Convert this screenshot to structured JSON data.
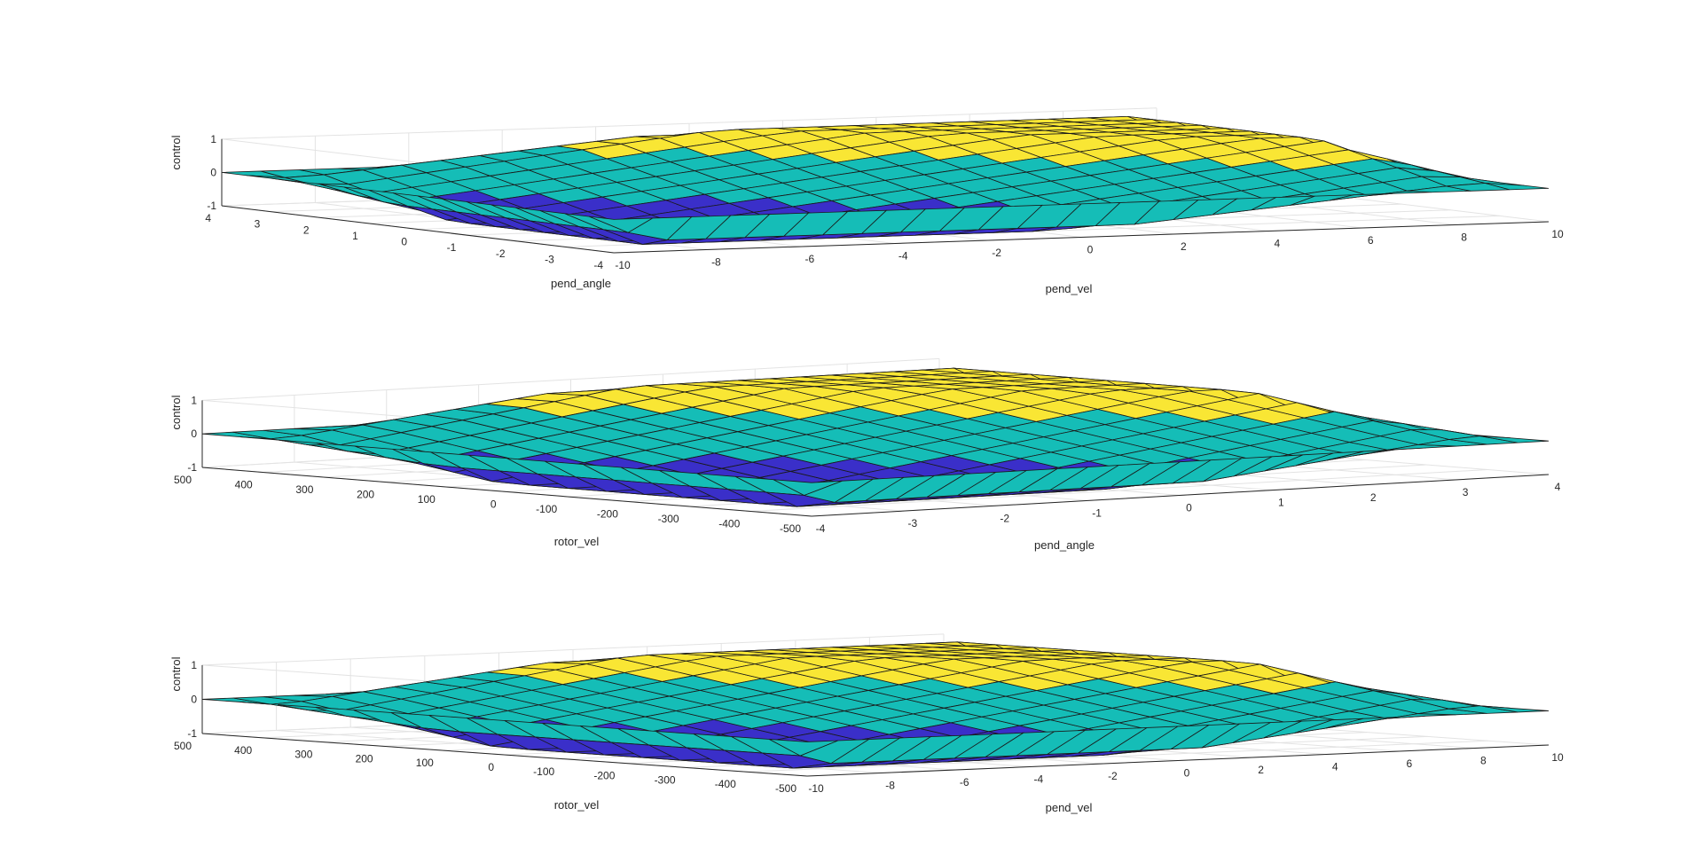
{
  "window": {
    "title": ""
  },
  "colors": {
    "background": "#ffffff",
    "grid": "#e3e3e3",
    "axis": "#262626",
    "surface_high": "#f9e634",
    "surface_mid": "#15bdb7",
    "surface_low": "#3a2fc9",
    "edge": "#1a1a1a"
  },
  "chart_data": [
    {
      "type": "surface",
      "title": "",
      "xlabel": "pend_vel",
      "ylabel": "pend_angle",
      "zlabel": "control",
      "xlim": [
        -10,
        10
      ],
      "ylim": [
        -4,
        4
      ],
      "zlim": [
        -1,
        1
      ],
      "xticks": [
        "-10",
        "-8",
        "-6",
        "-4",
        "-2",
        "0",
        "2",
        "4",
        "6",
        "8",
        "10"
      ],
      "yticks": [
        "-4",
        "-3",
        "-2",
        "-1",
        "0",
        "1",
        "2",
        "3",
        "4"
      ],
      "zticks": [
        "-1",
        "0",
        "1"
      ],
      "grid": true,
      "colormap": [
        "#3a2fc9",
        "#15bdb7",
        "#f9e634"
      ],
      "surface_levels": [
        -1,
        0,
        1
      ]
    },
    {
      "type": "surface",
      "title": "",
      "xlabel": "pend_angle",
      "ylabel": "rotor_vel",
      "zlabel": "control",
      "xlim": [
        -4,
        4
      ],
      "ylim": [
        -500,
        500
      ],
      "zlim": [
        -1,
        1
      ],
      "xticks": [
        "-4",
        "-3",
        "-2",
        "-1",
        "0",
        "1",
        "2",
        "3",
        "4"
      ],
      "yticks": [
        "-500",
        "-400",
        "-300",
        "-200",
        "-100",
        "0",
        "100",
        "200",
        "300",
        "400",
        "500"
      ],
      "zticks": [
        "-1",
        "0",
        "1"
      ],
      "grid": true,
      "colormap": [
        "#3a2fc9",
        "#15bdb7",
        "#f9e634"
      ],
      "surface_levels": [
        -1,
        0,
        1
      ]
    },
    {
      "type": "surface",
      "title": "",
      "xlabel": "pend_vel",
      "ylabel": "rotor_vel",
      "zlabel": "control",
      "xlim": [
        -10,
        10
      ],
      "ylim": [
        -500,
        500
      ],
      "zlim": [
        -1,
        1
      ],
      "xticks": [
        "-10",
        "-8",
        "-6",
        "-4",
        "-2",
        "0",
        "2",
        "4",
        "6",
        "8",
        "10"
      ],
      "yticks": [
        "-500",
        "-400",
        "-300",
        "-200",
        "-100",
        "0",
        "100",
        "200",
        "300",
        "400",
        "500"
      ],
      "zticks": [
        "-1",
        "0",
        "1"
      ],
      "grid": true,
      "colormap": [
        "#3a2fc9",
        "#15bdb7",
        "#f9e634"
      ],
      "surface_levels": [
        -1,
        0,
        1
      ]
    }
  ]
}
